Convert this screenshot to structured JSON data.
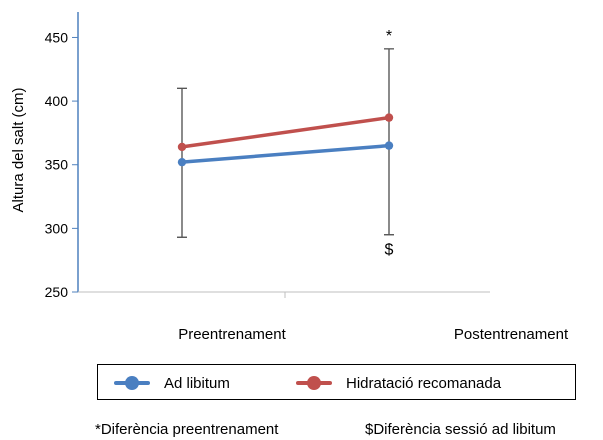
{
  "chart_data": {
    "type": "line",
    "categories": [
      "Preentrenament",
      "Postentrenament"
    ],
    "ylabel": "Altura del salt (cm)",
    "xlabel": "",
    "ylim": [
      250,
      470
    ],
    "yticks": [
      250,
      300,
      350,
      400,
      450
    ],
    "grid": false,
    "legend_position": "bottom",
    "series": [
      {
        "name": "Ad libitum",
        "color": "#4a7fc1",
        "values": [
          352,
          365
        ],
        "error_low": [
          293,
          295
        ],
        "error_high": [
          410,
          441
        ]
      },
      {
        "name": "Hidratació recomanada",
        "color": "#c0504d",
        "values": [
          364,
          387
        ],
        "error_low": [
          293,
          295
        ],
        "error_high": [
          410,
          441
        ]
      }
    ],
    "annotations": [
      {
        "text": "*",
        "category": 1,
        "y": 452
      },
      {
        "text": "$",
        "category": 1,
        "y": 284
      }
    ],
    "footnotes": [
      "*Diferència preentrenament",
      "$Diferència sessió ad libitum"
    ]
  }
}
